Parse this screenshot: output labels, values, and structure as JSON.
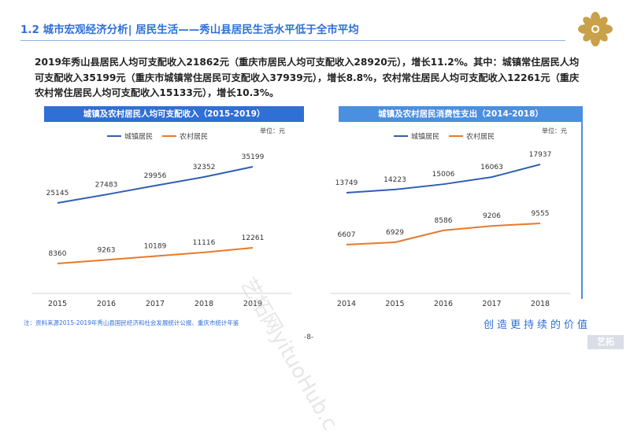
{
  "page": {
    "title": "1.2 城市宏观经济分析| 居民生活——秀山县居民生活水平低于全市平均",
    "summary": "2019年秀山县居民人均可支配收入21862元（重庆市居民人均可支配收入28920元），增长11.2%。其中：城镇常住居民人均可支配收入35199元（重庆市城镇常住居民可支配收入37939元），增长8.8%，农村常住居民人均可支配收入12261元（重庆农村常住居民人均可支配收入15133元），增长10.3%。",
    "source": "注：资料来源2015-2019年秀山县国民经济和社会发展统计公报、重庆市统计年鉴",
    "slogan": "创造更持续的价值",
    "page_number": "-8-",
    "watermark": "艺拓网yituoHub.c",
    "corner_mark": "艺拓"
  },
  "colors": {
    "title": "#2f6fd6",
    "urban": "#2f5fb3",
    "rural": "#e8792a",
    "header_left": "#2f6fd6",
    "header_right": "#4a8fe0"
  },
  "chart_data": [
    {
      "type": "line",
      "title": "城镇及农村居民人均可支配收入（2015-2019）",
      "unit_label": "单位：元",
      "x": [
        "2015",
        "2016",
        "2017",
        "2018",
        "2019"
      ],
      "series": [
        {
          "name": "城镇居民",
          "values": [
            25145,
            27483,
            29956,
            32352,
            35199
          ]
        },
        {
          "name": "农村居民",
          "values": [
            8360,
            9263,
            10189,
            11116,
            12261
          ]
        }
      ],
      "legend_position": "top-center",
      "grid": false
    },
    {
      "type": "line",
      "title": "城镇及农村居民消费性支出（2014-2018）",
      "unit_label": "单位：元",
      "x": [
        "2014",
        "2015",
        "2016",
        "2017",
        "2018"
      ],
      "series": [
        {
          "name": "城镇居民",
          "values": [
            13749,
            14223,
            15006,
            16063,
            17937
          ]
        },
        {
          "name": "农村居民",
          "values": [
            6607,
            6929,
            8586,
            9206,
            9555
          ]
        }
      ],
      "legend_position": "top-center",
      "grid": false
    }
  ]
}
